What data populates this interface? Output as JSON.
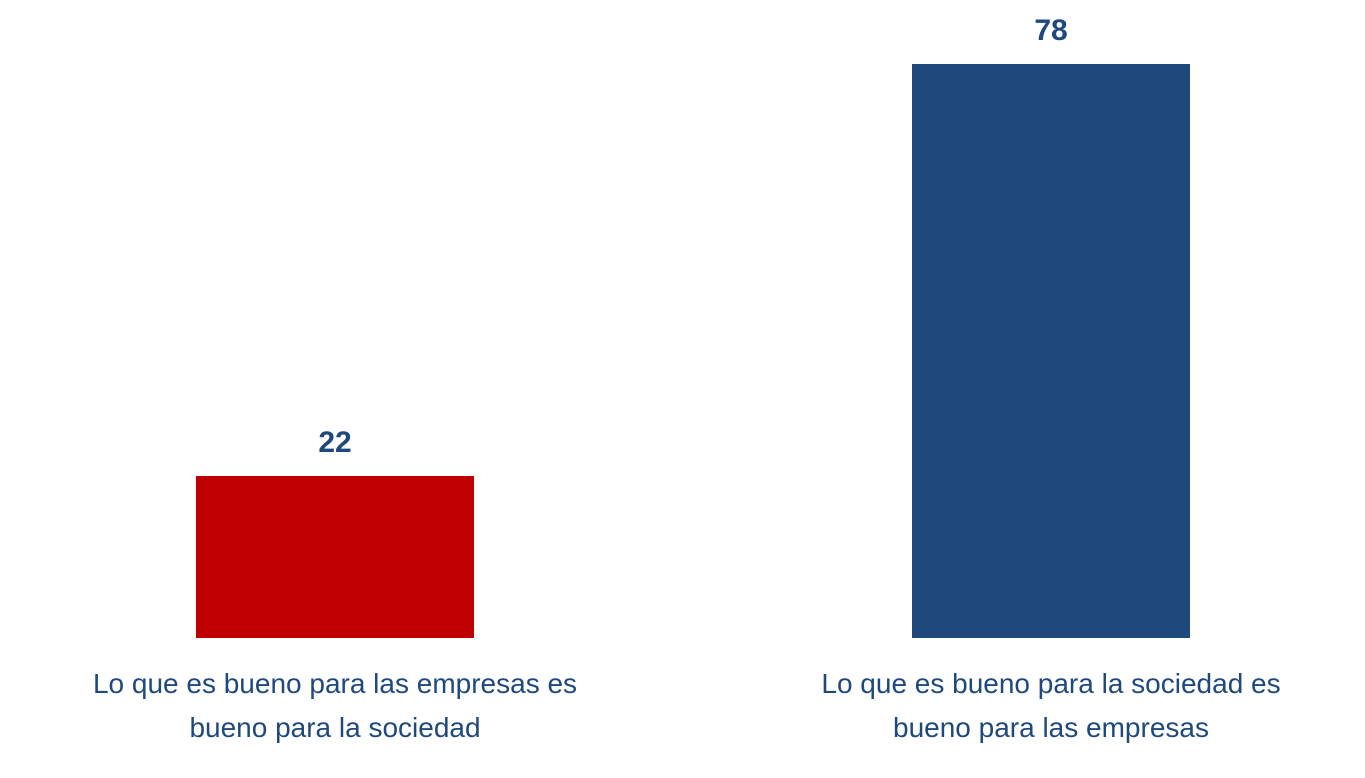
{
  "chart_data": {
    "type": "bar",
    "categories": [
      "Lo que es bueno para las empresas es bueno para la sociedad",
      "Lo que es bueno para la sociedad es bueno para las empresas"
    ],
    "values": [
      22,
      78
    ],
    "colors": [
      "#c00000",
      "#1f497d"
    ]
  }
}
